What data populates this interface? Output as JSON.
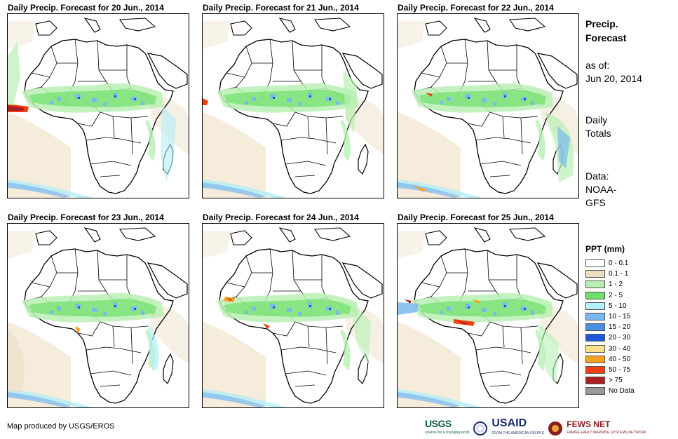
{
  "panels": [
    {
      "title": "Daily Precip. Forecast for 20 Jun., 2014"
    },
    {
      "title": "Daily Precip. Forecast for 21 Jun., 2014"
    },
    {
      "title": "Daily Precip. Forecast for 22 Jun., 2014"
    },
    {
      "title": "Daily Precip. Forecast for 23 Jun., 2014"
    },
    {
      "title": "Daily Precip. Forecast for 24 Jun., 2014"
    },
    {
      "title": "Daily Precip. Forecast for 25 Jun., 2014"
    }
  ],
  "side": {
    "title_line1": "Precip.",
    "title_line2": "Forecast",
    "asof_line1": "as of:",
    "asof_line2": "Jun 20, 2014",
    "totals_line1": "Daily",
    "totals_line2": "Totals",
    "data_line1": "Data:",
    "data_line2": "NOAA-",
    "data_line3": "GFS"
  },
  "legend": {
    "title": "PPT (mm)",
    "items": [
      {
        "label": "0 - 0.1",
        "color": "#ffffff"
      },
      {
        "label": "0.1 - 1",
        "color": "#ecdcc0"
      },
      {
        "label": "1 - 2",
        "color": "#b8f0b4"
      },
      {
        "label": "2 - 5",
        "color": "#6fe06a"
      },
      {
        "label": "5 - 10",
        "color": "#b4eef6"
      },
      {
        "label": "10 - 15",
        "color": "#7ab8f0"
      },
      {
        "label": "15 - 20",
        "color": "#4a8ee8"
      },
      {
        "label": "20 - 30",
        "color": "#1e5ad8"
      },
      {
        "label": "30 - 40",
        "color": "#fce08a"
      },
      {
        "label": "40 - 50",
        "color": "#f8a020"
      },
      {
        "label": "50 - 75",
        "color": "#f04010"
      },
      {
        "label": "> 75",
        "color": "#a82020"
      },
      {
        "label": "No Data",
        "color": "#999999"
      }
    ]
  },
  "footer": {
    "credit": "Map produced by USGS/EROS",
    "usgs": "USGS",
    "usgs_tag": "science for a changing world",
    "usaid": "USAID",
    "usaid_tag": "FROM THE AMERICAN PEOPLE",
    "fews": "FEWS NET",
    "fews_tag": "FAMINE EARLY WARNING SYSTEMS NETWORK"
  }
}
